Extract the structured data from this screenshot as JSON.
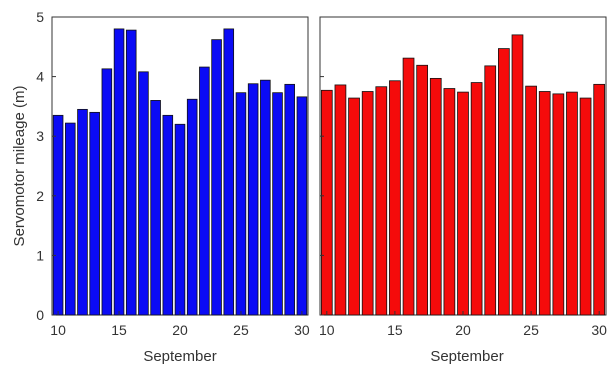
{
  "chart_data": [
    {
      "type": "bar",
      "x": [
        10,
        11,
        12,
        13,
        14,
        15,
        16,
        17,
        18,
        19,
        20,
        21,
        22,
        23,
        24,
        25,
        26,
        27,
        28,
        29,
        30
      ],
      "values": [
        3.35,
        3.22,
        3.45,
        3.4,
        4.13,
        4.8,
        4.78,
        4.08,
        3.6,
        3.35,
        3.2,
        3.62,
        4.16,
        4.62,
        4.8,
        3.73,
        3.88,
        3.94,
        3.73,
        3.87,
        3.66
      ],
      "xticks": [
        "10",
        "15",
        "20",
        "25",
        "30"
      ],
      "yticks": [
        "0",
        "1",
        "2",
        "3",
        "4",
        "5"
      ],
      "xlabel": "September",
      "ylabel": "Servomotor mileage (m)",
      "xlim": [
        9.5,
        30.5
      ],
      "ylim": [
        0,
        5
      ],
      "grid": false,
      "color": "#0b0bf5"
    },
    {
      "type": "bar",
      "x": [
        10,
        11,
        12,
        13,
        14,
        15,
        16,
        17,
        18,
        19,
        20,
        21,
        22,
        23,
        24,
        25,
        26,
        27,
        28,
        29,
        30
      ],
      "values": [
        3.77,
        3.86,
        3.64,
        3.75,
        3.83,
        3.93,
        4.31,
        4.19,
        3.97,
        3.8,
        3.74,
        3.9,
        4.18,
        4.47,
        4.7,
        3.84,
        3.75,
        3.71,
        3.74,
        3.64,
        3.87
      ],
      "xticks": [
        "10",
        "15",
        "20",
        "25",
        "30"
      ],
      "xlabel": "September",
      "ylabel": "",
      "xlim": [
        9.5,
        30.5
      ],
      "ylim": [
        0,
        5
      ],
      "grid": false,
      "color": "#f50b0b"
    }
  ]
}
